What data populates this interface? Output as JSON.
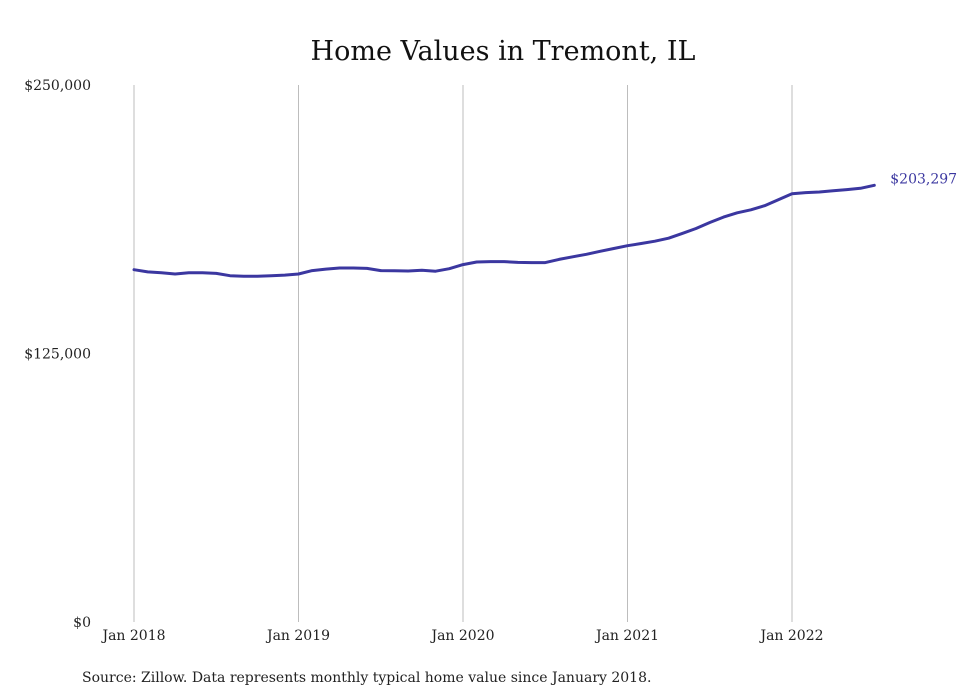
{
  "chart_data": {
    "type": "line",
    "title": "Home Values in Tremont, IL",
    "source": "Source: Zillow. Data represents monthly typical home value since January 2018.",
    "ylim": [
      0,
      250000
    ],
    "y_ticks": [
      {
        "value": 0,
        "label": "$0"
      },
      {
        "value": 125000,
        "label": "$125,000"
      },
      {
        "value": 250000,
        "label": "$250,000"
      }
    ],
    "xlim": [
      "2018-01",
      "2022-07"
    ],
    "x_ticks": [
      {
        "date": "2018-01",
        "label": "Jan 2018"
      },
      {
        "date": "2019-01",
        "label": "Jan 2019"
      },
      {
        "date": "2020-01",
        "label": "Jan 2020"
      },
      {
        "date": "2021-01",
        "label": "Jan 2021"
      },
      {
        "date": "2022-01",
        "label": "Jan 2022"
      }
    ],
    "grid": "vertical",
    "line_color": "#3b37a0",
    "series": [
      {
        "x": [
          "2018-01",
          "2018-02",
          "2018-03",
          "2018-04",
          "2018-05",
          "2018-06",
          "2018-07",
          "2018-08",
          "2018-09",
          "2018-10",
          "2018-11",
          "2018-12",
          "2019-01",
          "2019-02",
          "2019-03",
          "2019-04",
          "2019-05",
          "2019-06",
          "2019-07",
          "2019-08",
          "2019-09",
          "2019-10",
          "2019-11",
          "2019-12",
          "2020-01",
          "2020-02",
          "2020-03",
          "2020-04",
          "2020-05",
          "2020-06",
          "2020-07",
          "2020-08",
          "2020-09",
          "2020-10",
          "2020-11",
          "2020-12",
          "2021-01",
          "2021-02",
          "2021-03",
          "2021-04",
          "2021-05",
          "2021-06",
          "2021-07",
          "2021-08",
          "2021-09",
          "2021-10",
          "2021-11",
          "2021-12",
          "2022-01",
          "2022-02",
          "2022-03",
          "2022-04",
          "2022-05",
          "2022-06",
          "2022-07"
        ],
        "values": [
          164000,
          163000,
          162600,
          162000,
          162600,
          162600,
          162300,
          161200,
          161000,
          161000,
          161200,
          161500,
          162000,
          163600,
          164300,
          164800,
          164800,
          164600,
          163600,
          163500,
          163400,
          163800,
          163300,
          164500,
          166400,
          167600,
          167800,
          167800,
          167400,
          167300,
          167300,
          168800,
          170000,
          171200,
          172600,
          173900,
          175200,
          176200,
          177300,
          178700,
          180900,
          183200,
          186000,
          188500,
          190500,
          191900,
          193800,
          196600,
          199400,
          199900,
          200200,
          200800,
          201300,
          201900,
          203297
        ]
      }
    ],
    "end_label": "$203,297"
  }
}
